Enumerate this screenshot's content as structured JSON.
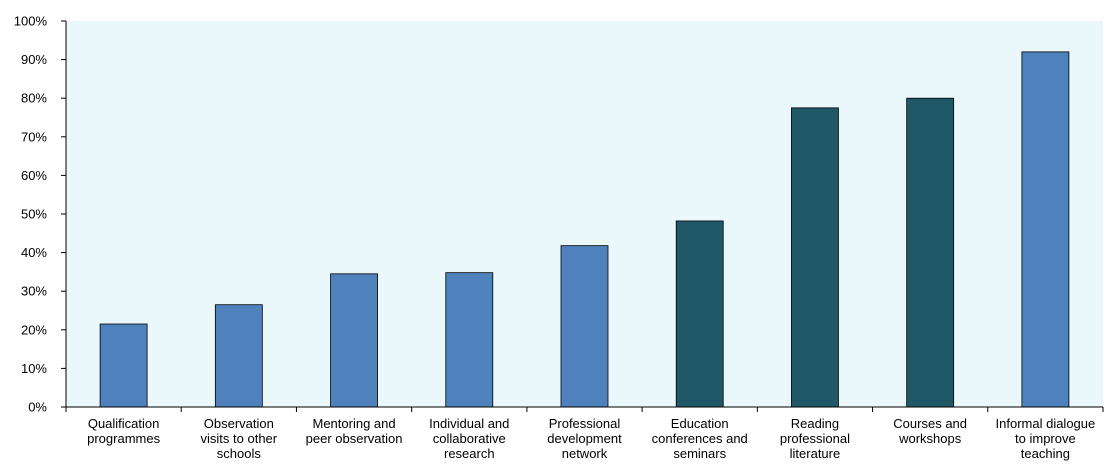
{
  "chart_data": {
    "type": "bar",
    "title": "",
    "xlabel": "",
    "ylabel": "",
    "ylim": [
      0,
      100
    ],
    "y_tick_labels": [
      "0%",
      "10%",
      "20%",
      "30%",
      "40%",
      "50%",
      "60%",
      "70%",
      "80%",
      "90%",
      "100%"
    ],
    "categories": [
      [
        "Qualification",
        "programmes"
      ],
      [
        "Observation",
        "visits to other",
        "schools"
      ],
      [
        "Mentoring and",
        "peer observation"
      ],
      [
        "Individual and",
        "collaborative",
        "research"
      ],
      [
        "Professional",
        "development",
        "network"
      ],
      [
        "Education",
        "conferences and",
        "seminars"
      ],
      [
        "Reading",
        "professional",
        "literature"
      ],
      [
        "Courses and",
        "workshops"
      ],
      [
        "Informal dialogue",
        "to improve",
        "teaching"
      ]
    ],
    "values": [
      21.5,
      26.5,
      34.5,
      34.8,
      41.8,
      48.2,
      77.5,
      80.0,
      92.0
    ],
    "highlighted": [
      false,
      false,
      false,
      false,
      false,
      true,
      true,
      true,
      false
    ],
    "colors": {
      "bar": "#4F81BD",
      "highlight": "#215868",
      "plot_background": "#EAF8FC",
      "axis": "#000000"
    },
    "grid": false,
    "legend": "none"
  }
}
